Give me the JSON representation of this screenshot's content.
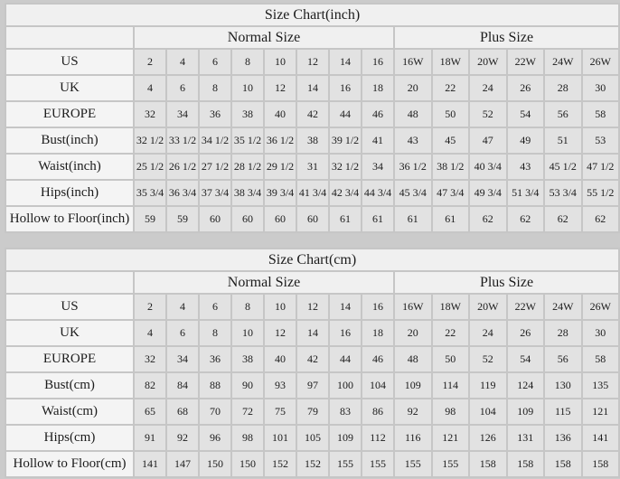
{
  "page": {
    "background_color": "#cbcbcb",
    "grid_color": "#c6c6c6",
    "value_cell_color": "#e2e2e2",
    "label_cell_color": "#f4f4f4",
    "header_cell_color": "#f0f0f0"
  },
  "chart_data": [
    {
      "type": "table",
      "title": "Size Chart(inch)",
      "group_headers": [
        "Normal Size",
        "Plus Size"
      ],
      "normal_column_count": 8,
      "plus_column_count": 6,
      "rows": [
        {
          "label": "US",
          "normal": [
            "2",
            "4",
            "6",
            "8",
            "10",
            "12",
            "14",
            "16"
          ],
          "plus": [
            "16W",
            "18W",
            "20W",
            "22W",
            "24W",
            "26W"
          ]
        },
        {
          "label": "UK",
          "normal": [
            "4",
            "6",
            "8",
            "10",
            "12",
            "14",
            "16",
            "18"
          ],
          "plus": [
            "20",
            "22",
            "24",
            "26",
            "28",
            "30"
          ]
        },
        {
          "label": "EUROPE",
          "normal": [
            "32",
            "34",
            "36",
            "38",
            "40",
            "42",
            "44",
            "46"
          ],
          "plus": [
            "48",
            "50",
            "52",
            "54",
            "56",
            "58"
          ]
        },
        {
          "label": "Bust(inch)",
          "normal": [
            "32 1/2",
            "33 1/2",
            "34 1/2",
            "35 1/2",
            "36 1/2",
            "38",
            "39 1/2",
            "41"
          ],
          "plus": [
            "43",
            "45",
            "47",
            "49",
            "51",
            "53"
          ]
        },
        {
          "label": "Waist(inch)",
          "normal": [
            "25 1/2",
            "26 1/2",
            "27 1/2",
            "28 1/2",
            "29 1/2",
            "31",
            "32 1/2",
            "34"
          ],
          "plus": [
            "36 1/2",
            "38 1/2",
            "40 3/4",
            "43",
            "45 1/2",
            "47 1/2"
          ]
        },
        {
          "label": "Hips(inch)",
          "normal": [
            "35 3/4",
            "36 3/4",
            "37 3/4",
            "38 3/4",
            "39 3/4",
            "41 3/4",
            "42 3/4",
            "44 3/4"
          ],
          "plus": [
            "45 3/4",
            "47 3/4",
            "49 3/4",
            "51 3/4",
            "53 3/4",
            "55 1/2"
          ]
        },
        {
          "label": "Hollow to Floor(inch)",
          "normal": [
            "59",
            "59",
            "60",
            "60",
            "60",
            "60",
            "61",
            "61"
          ],
          "plus": [
            "61",
            "61",
            "62",
            "62",
            "62",
            "62"
          ]
        }
      ]
    },
    {
      "type": "table",
      "title": "Size Chart(cm)",
      "group_headers": [
        "Normal Size",
        "Plus Size"
      ],
      "normal_column_count": 8,
      "plus_column_count": 6,
      "rows": [
        {
          "label": "US",
          "normal": [
            "2",
            "4",
            "6",
            "8",
            "10",
            "12",
            "14",
            "16"
          ],
          "plus": [
            "16W",
            "18W",
            "20W",
            "22W",
            "24W",
            "26W"
          ]
        },
        {
          "label": "UK",
          "normal": [
            "4",
            "6",
            "8",
            "10",
            "12",
            "14",
            "16",
            "18"
          ],
          "plus": [
            "20",
            "22",
            "24",
            "26",
            "28",
            "30"
          ]
        },
        {
          "label": "EUROPE",
          "normal": [
            "32",
            "34",
            "36",
            "38",
            "40",
            "42",
            "44",
            "46"
          ],
          "plus": [
            "48",
            "50",
            "52",
            "54",
            "56",
            "58"
          ]
        },
        {
          "label": "Bust(cm)",
          "normal": [
            "82",
            "84",
            "88",
            "90",
            "93",
            "97",
            "100",
            "104"
          ],
          "plus": [
            "109",
            "114",
            "119",
            "124",
            "130",
            "135"
          ]
        },
        {
          "label": "Waist(cm)",
          "normal": [
            "65",
            "68",
            "70",
            "72",
            "75",
            "79",
            "83",
            "86"
          ],
          "plus": [
            "92",
            "98",
            "104",
            "109",
            "115",
            "121"
          ]
        },
        {
          "label": "Hips(cm)",
          "normal": [
            "91",
            "92",
            "96",
            "98",
            "101",
            "105",
            "109",
            "112"
          ],
          "plus": [
            "116",
            "121",
            "126",
            "131",
            "136",
            "141"
          ]
        },
        {
          "label": "Hollow to Floor(cm)",
          "normal": [
            "141",
            "147",
            "150",
            "150",
            "152",
            "152",
            "155",
            "155"
          ],
          "plus": [
            "155",
            "155",
            "158",
            "158",
            "158",
            "158"
          ]
        }
      ]
    }
  ]
}
